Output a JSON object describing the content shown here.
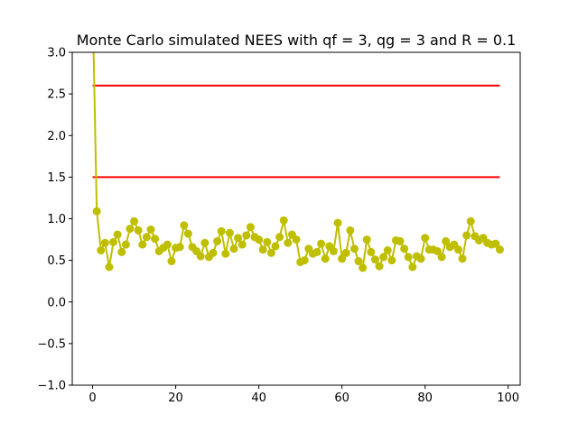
{
  "chart_data": {
    "type": "line",
    "title": "Monte Carlo simulated NEES with qf = 3, qg = 3 and R = 0.1",
    "xlabel": "",
    "ylabel": "",
    "xlim": [
      -4.9,
      102.9
    ],
    "ylim": [
      -1.0,
      3.0
    ],
    "xticks": [
      0,
      20,
      40,
      60,
      80,
      100
    ],
    "yticks": [
      -1.0,
      -0.5,
      0.0,
      0.5,
      1.0,
      1.5,
      2.0,
      2.5,
      3.0
    ],
    "xtick_labels": [
      "0",
      "20",
      "40",
      "60",
      "80",
      "100"
    ],
    "ytick_labels": [
      "−1.0",
      "−0.5",
      "0.0",
      "0.5",
      "1.0",
      "1.5",
      "2.0",
      "2.5",
      "3.0"
    ],
    "grid": false,
    "series": [
      {
        "color": "#bfbf00",
        "marker": "circle",
        "x": [
          0,
          1,
          2,
          3,
          4,
          5,
          6,
          7,
          8,
          9,
          10,
          11,
          12,
          13,
          14,
          15,
          16,
          17,
          18,
          19,
          20,
          21,
          22,
          23,
          24,
          25,
          26,
          27,
          28,
          29,
          30,
          31,
          32,
          33,
          34,
          35,
          36,
          37,
          38,
          39,
          40,
          41,
          42,
          43,
          44,
          45,
          46,
          47,
          48,
          49,
          50,
          51,
          52,
          53,
          54,
          55,
          56,
          57,
          58,
          59,
          60,
          61,
          62,
          63,
          64,
          65,
          66,
          67,
          68,
          69,
          70,
          71,
          72,
          73,
          74,
          75,
          76,
          77,
          78,
          79,
          80,
          81,
          82,
          83,
          84,
          85,
          86,
          87,
          88,
          89,
          90,
          91,
          92,
          93,
          94,
          95,
          96,
          97,
          98
        ],
        "values": [
          3.6,
          1.09,
          0.62,
          0.71,
          0.42,
          0.72,
          0.81,
          0.6,
          0.69,
          0.88,
          0.97,
          0.86,
          0.69,
          0.78,
          0.87,
          0.76,
          0.61,
          0.65,
          0.69,
          0.49,
          0.65,
          0.66,
          0.92,
          0.82,
          0.66,
          0.61,
          0.55,
          0.71,
          0.54,
          0.59,
          0.73,
          0.85,
          0.58,
          0.83,
          0.64,
          0.77,
          0.69,
          0.8,
          0.9,
          0.78,
          0.75,
          0.63,
          0.72,
          0.59,
          0.67,
          0.78,
          0.98,
          0.71,
          0.81,
          0.75,
          0.48,
          0.5,
          0.64,
          0.58,
          0.6,
          0.7,
          0.52,
          0.67,
          0.61,
          0.95,
          0.52,
          0.59,
          0.86,
          0.64,
          0.49,
          0.41,
          0.75,
          0.6,
          0.51,
          0.43,
          0.54,
          0.62,
          0.5,
          0.74,
          0.73,
          0.64,
          0.54,
          0.42,
          0.55,
          0.52,
          0.77,
          0.63,
          0.63,
          0.61,
          0.54,
          0.73,
          0.66,
          0.69,
          0.63,
          0.52,
          0.8,
          0.97,
          0.79,
          0.74,
          0.77,
          0.71,
          0.69,
          0.7,
          0.63
        ]
      }
    ],
    "hlines": [
      {
        "y": 2.6,
        "x_start": 0,
        "x_end": 98,
        "color": "#ff0000"
      },
      {
        "y": 1.5,
        "x_start": 0,
        "x_end": 98,
        "color": "#ff0000"
      }
    ]
  }
}
